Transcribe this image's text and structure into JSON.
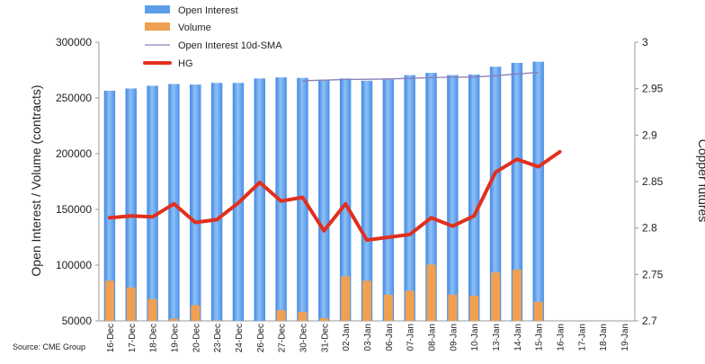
{
  "chart_data": {
    "type": "bar",
    "categories": [
      "16-Dec",
      "17-Dec",
      "18-Dec",
      "19-Dec",
      "20-Dec",
      "23-Dec",
      "24-Dec",
      "26-Dec",
      "27-Dec",
      "30-Dec",
      "31-Dec",
      "02-Jan",
      "03-Jan",
      "06-Jan",
      "07-Jan",
      "08-Jan",
      "09-Jan",
      "10-Jan",
      "13-Jan",
      "14-Jan",
      "15-Jan",
      "16-Jan",
      "17-Jan",
      "18-Jan",
      "19-Jan"
    ],
    "series": [
      {
        "name": "Open Interest",
        "type": "bar",
        "axis": "left",
        "color": "#5b9ee9",
        "values": [
          256500,
          258500,
          261000,
          262500,
          262000,
          263500,
          263500,
          267500,
          268500,
          268000,
          266500,
          267500,
          265500,
          266500,
          270500,
          272500,
          270500,
          271000,
          278000,
          281500,
          282500,
          null,
          null,
          null,
          null
        ]
      },
      {
        "name": "Volume",
        "type": "bar",
        "axis": "left",
        "color": "#f0a050",
        "values": [
          86000,
          80000,
          69500,
          52000,
          64000,
          50500,
          50000,
          50000,
          59500,
          58000,
          52500,
          90000,
          86000,
          73500,
          77000,
          100500,
          73500,
          72500,
          93500,
          96000,
          67000,
          null,
          null,
          null,
          null
        ]
      },
      {
        "name": "Open Interest 10d-SMA",
        "type": "line",
        "axis": "left",
        "color": "#8a7fb8",
        "values": [
          null,
          null,
          null,
          null,
          null,
          null,
          null,
          null,
          null,
          265500,
          266000,
          266500,
          266800,
          267100,
          267600,
          268200,
          268600,
          268800,
          270000,
          271500,
          273000,
          null,
          null,
          null,
          null
        ]
      },
      {
        "name": "HG",
        "type": "line",
        "axis": "right",
        "color": "#e0301e",
        "values": [
          2.811,
          2.813,
          2.812,
          2.826,
          2.806,
          2.809,
          2.827,
          2.849,
          2.829,
          2.833,
          2.797,
          2.826,
          2.787,
          2.79,
          2.793,
          2.811,
          2.802,
          2.813,
          2.86,
          2.874,
          2.866,
          2.882,
          null,
          null,
          null
        ]
      }
    ],
    "ylabel_left": "Open Interest / Volume (contracts)",
    "ylabel_right": "Copper futures",
    "ylim_left": [
      50000,
      300000
    ],
    "yticks_left": [
      50000,
      100000,
      150000,
      200000,
      250000,
      300000
    ],
    "ytick_labels_left": [
      "50000",
      "100000",
      "150000",
      "200000",
      "250000",
      "300000"
    ],
    "ylim_right": [
      2.7,
      3.0
    ],
    "yticks_right": [
      2.7,
      2.75,
      2.8,
      2.85,
      2.9,
      2.95,
      3.0
    ],
    "ytick_labels_right": [
      "2.7",
      "2.75",
      "2.8",
      "2.85",
      "2.9",
      "2.95",
      "3"
    ],
    "legend_position": "top-center",
    "grid": false
  },
  "source_text": "Source: CME Group"
}
